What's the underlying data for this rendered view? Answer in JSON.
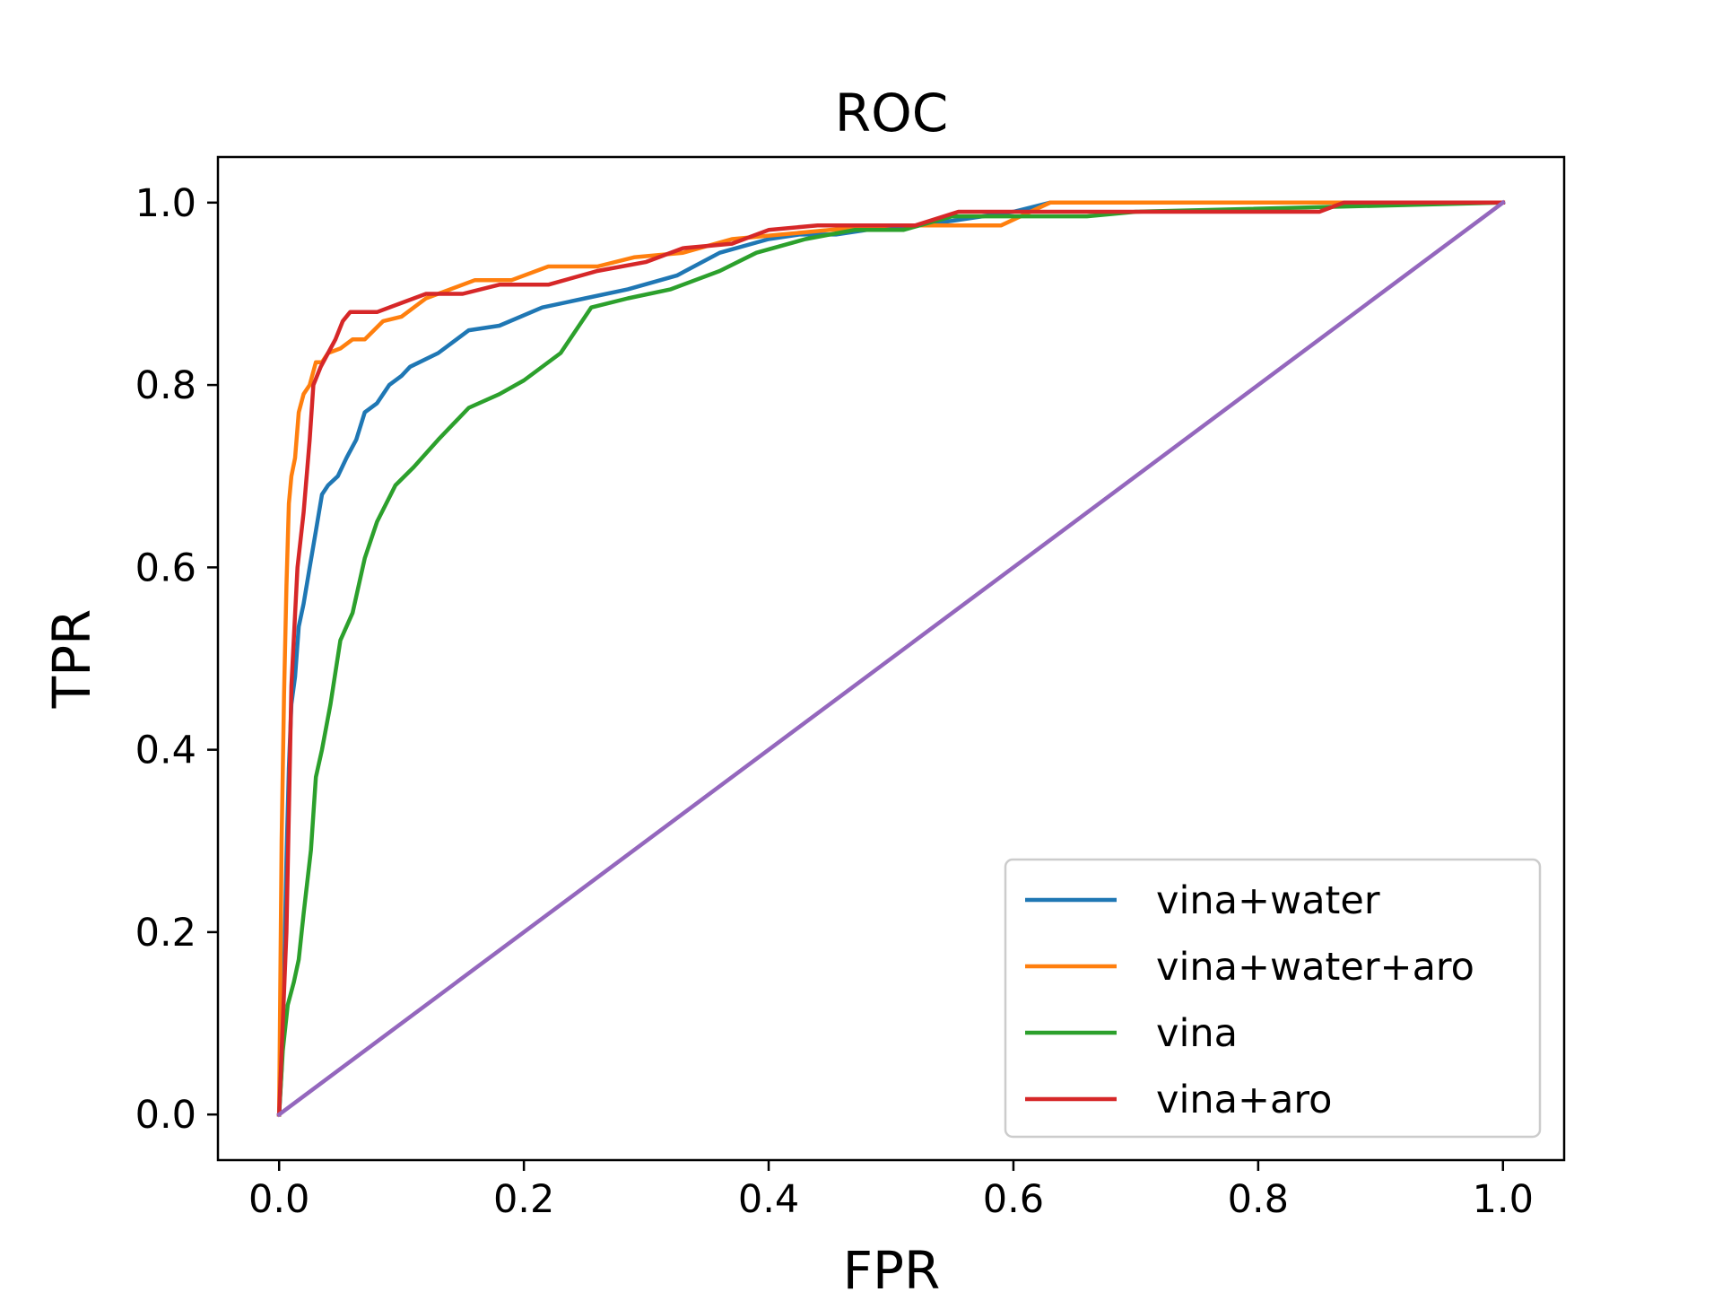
{
  "chart_data": {
    "type": "line",
    "title": "ROC",
    "xlabel": "FPR",
    "ylabel": "TPR",
    "xlim": [
      -0.05,
      1.05
    ],
    "ylim": [
      -0.05,
      1.05
    ],
    "xticks": [
      "0.0",
      "0.2",
      "0.4",
      "0.6",
      "0.8",
      "1.0"
    ],
    "yticks": [
      "0.0",
      "0.2",
      "0.4",
      "0.6",
      "0.8",
      "1.0"
    ],
    "grid": false,
    "legend_position": "lower-right",
    "series": [
      {
        "name": "vina+water",
        "color": "#1f77b4",
        "x": [
          0,
          0.002,
          0.004,
          0.006,
          0.008,
          0.01,
          0.013,
          0.016,
          0.02,
          0.025,
          0.03,
          0.035,
          0.04,
          0.048,
          0.055,
          0.063,
          0.07,
          0.08,
          0.09,
          0.1,
          0.107,
          0.13,
          0.155,
          0.18,
          0.215,
          0.25,
          0.285,
          0.325,
          0.36,
          0.4,
          0.425,
          0.455,
          0.48,
          0.52,
          0.55,
          0.6,
          0.63,
          1.0
        ],
        "y": [
          0,
          0.05,
          0.15,
          0.28,
          0.38,
          0.45,
          0.48,
          0.535,
          0.56,
          0.6,
          0.64,
          0.68,
          0.69,
          0.7,
          0.72,
          0.74,
          0.77,
          0.78,
          0.8,
          0.81,
          0.82,
          0.835,
          0.86,
          0.865,
          0.885,
          0.895,
          0.905,
          0.92,
          0.945,
          0.96,
          0.965,
          0.965,
          0.97,
          0.975,
          0.98,
          0.99,
          1.0,
          1.0
        ]
      },
      {
        "name": "vina+water+aro",
        "color": "#ff7f0e",
        "x": [
          0,
          0.002,
          0.004,
          0.006,
          0.008,
          0.01,
          0.013,
          0.016,
          0.02,
          0.025,
          0.03,
          0.035,
          0.04,
          0.05,
          0.06,
          0.07,
          0.085,
          0.1,
          0.12,
          0.16,
          0.19,
          0.22,
          0.26,
          0.29,
          0.33,
          0.37,
          0.41,
          0.45,
          0.5,
          0.55,
          0.59,
          0.63,
          0.85,
          1.0
        ],
        "y": [
          0,
          0.3,
          0.46,
          0.58,
          0.67,
          0.7,
          0.72,
          0.77,
          0.79,
          0.8,
          0.825,
          0.825,
          0.835,
          0.84,
          0.85,
          0.85,
          0.87,
          0.875,
          0.895,
          0.915,
          0.915,
          0.93,
          0.93,
          0.94,
          0.945,
          0.96,
          0.965,
          0.97,
          0.975,
          0.975,
          0.975,
          1.0,
          1.0,
          1.0
        ]
      },
      {
        "name": "vina",
        "color": "#2ca02c",
        "x": [
          0,
          0.003,
          0.007,
          0.012,
          0.016,
          0.02,
          0.026,
          0.03,
          0.035,
          0.042,
          0.05,
          0.06,
          0.07,
          0.08,
          0.095,
          0.11,
          0.13,
          0.155,
          0.18,
          0.2,
          0.23,
          0.255,
          0.285,
          0.32,
          0.36,
          0.39,
          0.43,
          0.47,
          0.51,
          0.55,
          0.6,
          0.66,
          0.7,
          1.0
        ],
        "y": [
          0,
          0.07,
          0.12,
          0.145,
          0.17,
          0.22,
          0.29,
          0.37,
          0.4,
          0.45,
          0.52,
          0.55,
          0.61,
          0.65,
          0.69,
          0.71,
          0.74,
          0.775,
          0.79,
          0.805,
          0.835,
          0.885,
          0.895,
          0.905,
          0.925,
          0.945,
          0.96,
          0.97,
          0.97,
          0.985,
          0.985,
          0.985,
          0.99,
          1.0
        ]
      },
      {
        "name": "vina+aro",
        "color": "#d62728",
        "x": [
          0,
          0.003,
          0.006,
          0.01,
          0.015,
          0.02,
          0.025,
          0.028,
          0.034,
          0.04,
          0.046,
          0.052,
          0.058,
          0.065,
          0.08,
          0.1,
          0.12,
          0.15,
          0.18,
          0.22,
          0.26,
          0.3,
          0.33,
          0.37,
          0.4,
          0.44,
          0.48,
          0.52,
          0.555,
          0.6,
          0.7,
          0.85,
          0.87,
          1.0
        ],
        "y": [
          0,
          0.1,
          0.2,
          0.47,
          0.6,
          0.66,
          0.74,
          0.8,
          0.82,
          0.835,
          0.85,
          0.87,
          0.88,
          0.88,
          0.88,
          0.89,
          0.9,
          0.9,
          0.91,
          0.91,
          0.925,
          0.935,
          0.95,
          0.955,
          0.97,
          0.975,
          0.975,
          0.975,
          0.99,
          0.99,
          0.99,
          0.99,
          1.0,
          1.0
        ]
      },
      {
        "name": "diagonal",
        "color": "#9467bd",
        "in_legend": false,
        "x": [
          0,
          1
        ],
        "y": [
          0,
          1
        ]
      }
    ]
  }
}
